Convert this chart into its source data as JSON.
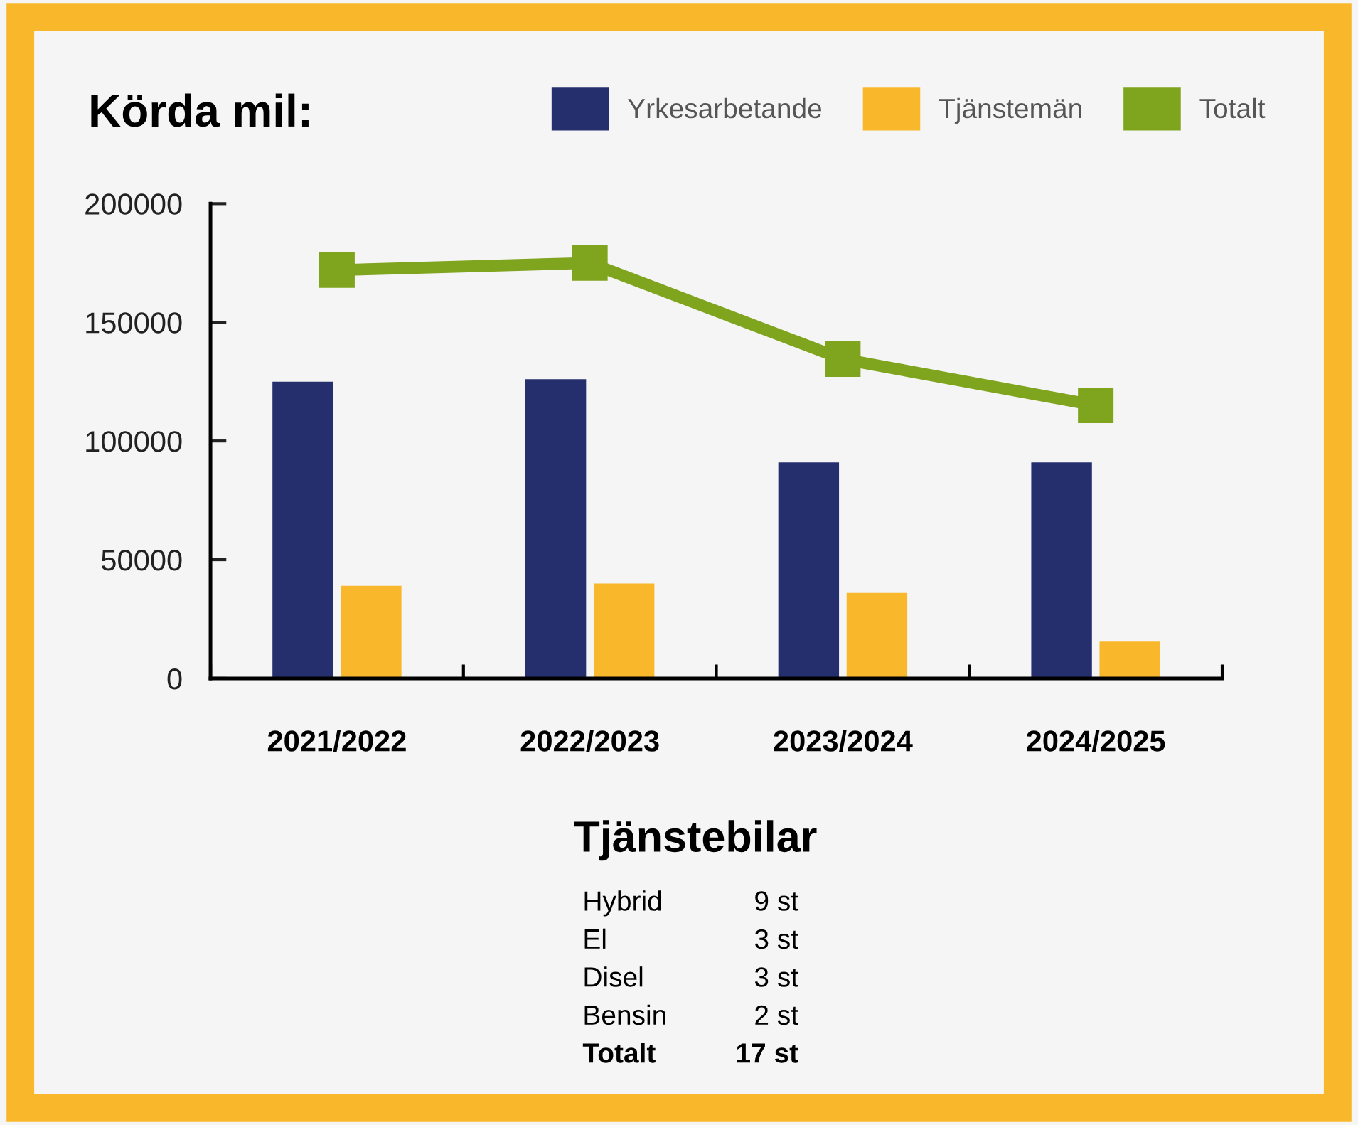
{
  "chart_data": {
    "type": "bar",
    "title": "Körda mil:",
    "categories": [
      "2021/2022",
      "2022/2023",
      "2023/2024",
      "2024/2025"
    ],
    "series": [
      {
        "name": "Yrkesarbetande",
        "color": "#252f6e",
        "values": [
          125000,
          126000,
          91000,
          91000
        ]
      },
      {
        "name": "Tjänstemän",
        "color": "#f9b82c",
        "values": [
          39000,
          40000,
          36000,
          15500
        ]
      },
      {
        "name": "Totalt",
        "type": "line",
        "color": "#7fa41d",
        "marker": "square",
        "values": [
          172000,
          175000,
          134500,
          115000
        ]
      }
    ],
    "ylim": [
      0,
      200000
    ],
    "yticks": [
      0,
      50000,
      100000,
      150000,
      200000
    ],
    "grid": false,
    "legend": "top right",
    "annotations": [
      "Tjänstebilar",
      "Hybrid",
      "9 st",
      "El",
      "3 st",
      "Disel",
      "3 st",
      "Bensin",
      "2 st",
      "Totalt",
      "17 st"
    ]
  }
}
